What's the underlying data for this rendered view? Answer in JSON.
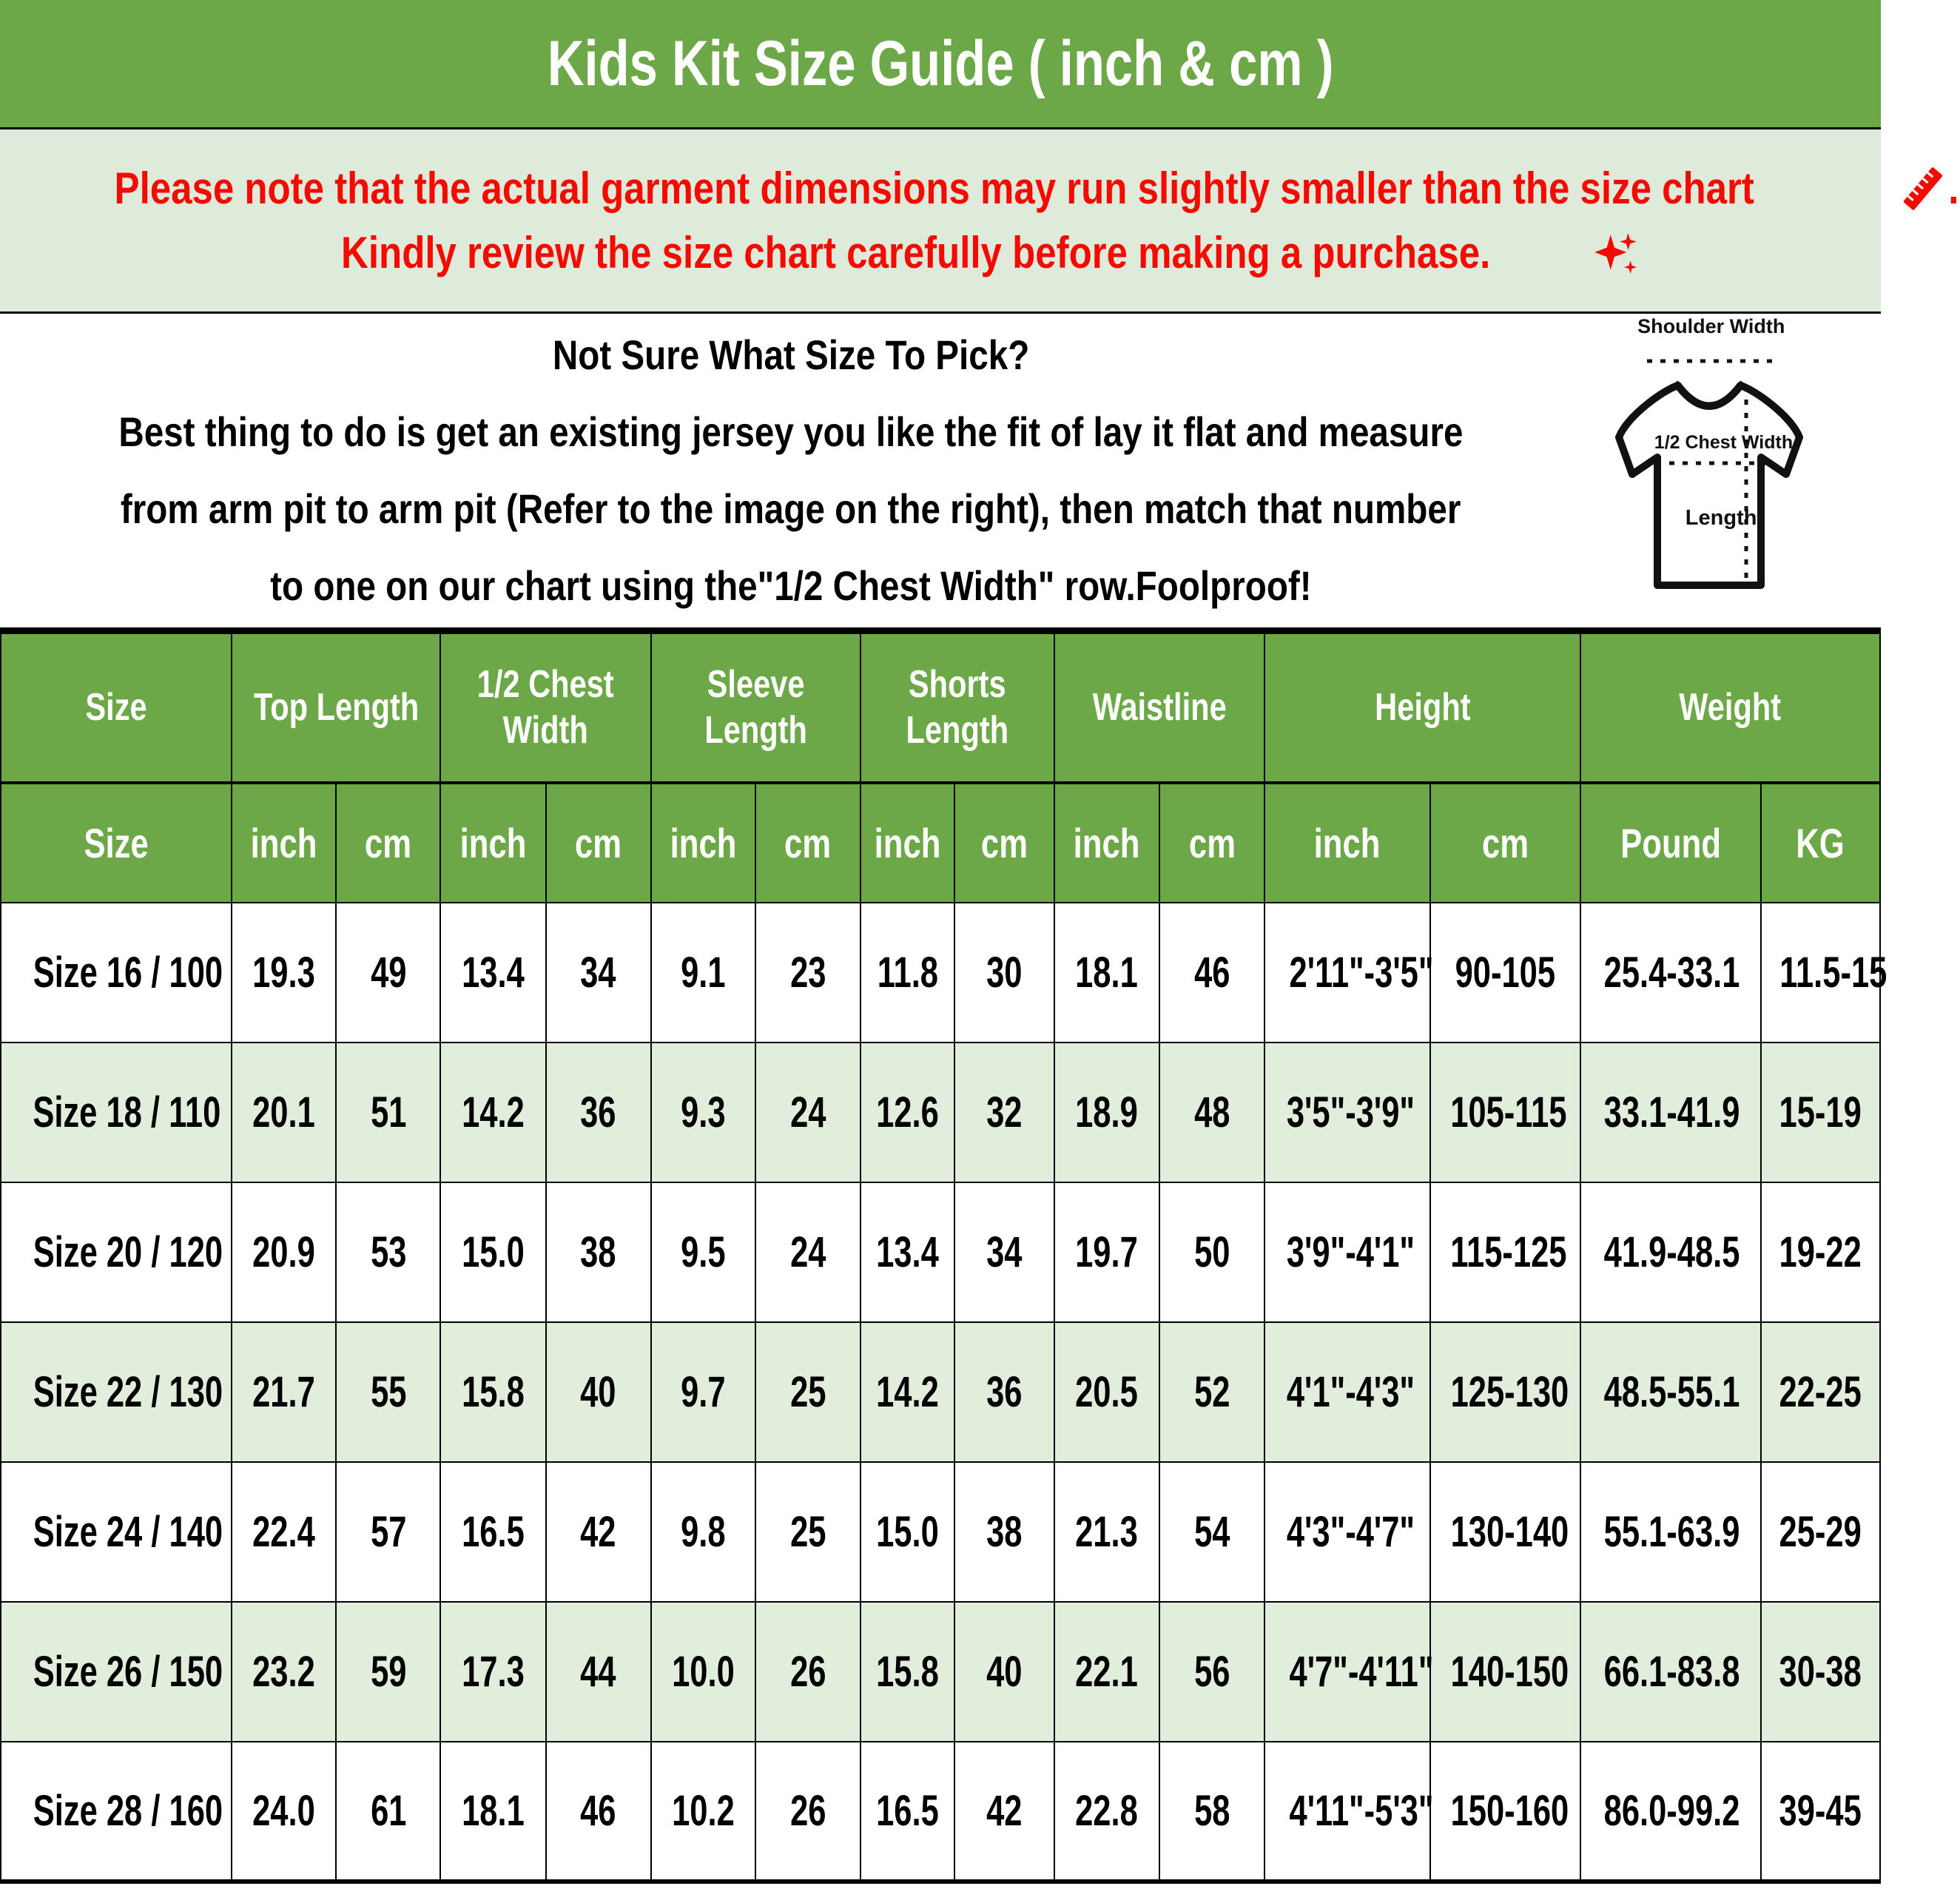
{
  "title": "Kids Kit Size Guide ( inch & cm )",
  "colors": {
    "header_green": "#6CA847",
    "banner_green": "#DFEBDA",
    "row_alt_green": "#E2EEDC",
    "notice_red": "#F50A00"
  },
  "notice": {
    "line1_text": "Please note that the actual garment dimensions may run slightly smaller than the size chart ",
    "line1_end": ".",
    "line2_text": "Kindly review the size chart carefully before making a purchase.",
    "icons": [
      "pushpin-icon",
      "ruler-icon",
      "sparkles-icon"
    ]
  },
  "info": {
    "line1": "Not Sure What Size To Pick?",
    "line2": "Best thing to do is get an existing jersey you like the fit of lay it flat and measure",
    "line3": "from arm pit to arm pit (Refer to the image on the right), then match that number",
    "line4": "to one on our chart using the\"1/2 Chest Width\" row.Foolproof!"
  },
  "diagram": {
    "shoulder_label": "Shoulder Width",
    "chest_label": "1/2 Chest Width",
    "length_label": "Length"
  },
  "table": {
    "groups": [
      {
        "label": "Size",
        "span": 1
      },
      {
        "label": "Top Length",
        "span": 2
      },
      {
        "label": "1/2 Chest Width",
        "span": 2
      },
      {
        "label": "Sleeve Length",
        "span": 2
      },
      {
        "label": "Shorts Length",
        "span": 2
      },
      {
        "label": "Waistline",
        "span": 2
      },
      {
        "label": "Height",
        "span": 2
      },
      {
        "label": "Weight",
        "span": 2
      }
    ],
    "subheaders": [
      "Size",
      "inch",
      "cm",
      "inch",
      "cm",
      "inch",
      "cm",
      "inch",
      "cm",
      "inch",
      "cm",
      "inch",
      "cm",
      "Pound",
      "KG"
    ],
    "rows": [
      [
        "Size 16 / 100",
        "19.3",
        "49",
        "13.4",
        "34",
        "9.1",
        "23",
        "11.8",
        "30",
        "18.1",
        "46",
        "2'11\"-3'5\"",
        "90-105",
        "25.4-33.1",
        "11.5-15"
      ],
      [
        "Size 18 / 110",
        "20.1",
        "51",
        "14.2",
        "36",
        "9.3",
        "24",
        "12.6",
        "32",
        "18.9",
        "48",
        "3'5\"-3'9\"",
        "105-115",
        "33.1-41.9",
        "15-19"
      ],
      [
        "Size 20 / 120",
        "20.9",
        "53",
        "15.0",
        "38",
        "9.5",
        "24",
        "13.4",
        "34",
        "19.7",
        "50",
        "3'9\"-4'1\"",
        "115-125",
        "41.9-48.5",
        "19-22"
      ],
      [
        "Size 22 / 130",
        "21.7",
        "55",
        "15.8",
        "40",
        "9.7",
        "25",
        "14.2",
        "36",
        "20.5",
        "52",
        "4'1\"-4'3\"",
        "125-130",
        "48.5-55.1",
        "22-25"
      ],
      [
        "Size 24 / 140",
        "22.4",
        "57",
        "16.5",
        "42",
        "9.8",
        "25",
        "15.0",
        "38",
        "21.3",
        "54",
        "4'3\"-4'7\"",
        "130-140",
        "55.1-63.9",
        "25-29"
      ],
      [
        "Size 26 / 150",
        "23.2",
        "59",
        "17.3",
        "44",
        "10.0",
        "26",
        "15.8",
        "40",
        "22.1",
        "56",
        "4'7\"-4'11\"",
        "140-150",
        "66.1-83.8",
        "30-38"
      ],
      [
        "Size 28 / 160",
        "24.0",
        "61",
        "18.1",
        "46",
        "10.2",
        "26",
        "16.5",
        "42",
        "22.8",
        "58",
        "4'11\"-5'3\"",
        "150-160",
        "86.0-99.2",
        "39-45"
      ]
    ]
  }
}
